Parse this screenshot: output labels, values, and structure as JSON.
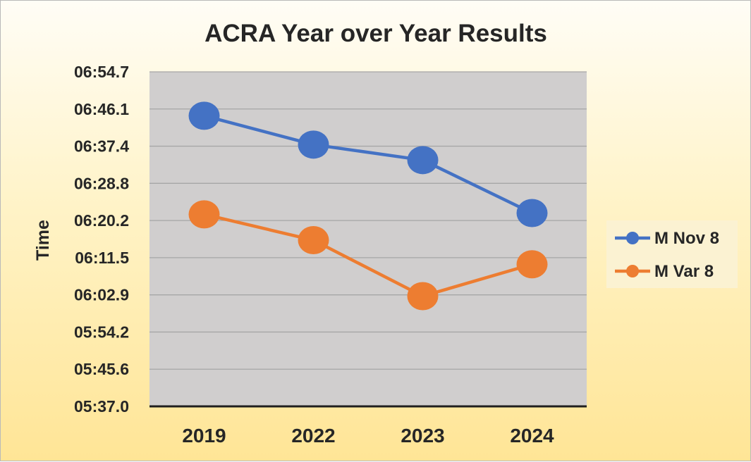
{
  "chart_data": {
    "type": "line",
    "title": "ACRA Year over Year Results",
    "xlabel": "",
    "ylabel": "Time",
    "categories": [
      "2019",
      "2022",
      "2023",
      "2024"
    ],
    "yticks": [
      "05:37.0",
      "05:45.6",
      "05:54.2",
      "06:02.9",
      "06:11.5",
      "06:20.2",
      "06:28.8",
      "06:37.4",
      "06:46.1",
      "06:54.7"
    ],
    "ylim_seconds": [
      337.0,
      414.7
    ],
    "series": [
      {
        "name": "M Nov 8",
        "color": "#4472C4",
        "values_seconds": [
          404.5,
          397.8,
          394.2,
          381.9
        ]
      },
      {
        "name": "M Var 8",
        "color": "#ED7D31",
        "values_seconds": [
          381.6,
          375.6,
          362.6,
          370.0
        ]
      }
    ],
    "legend_position": "right",
    "grid": true
  }
}
